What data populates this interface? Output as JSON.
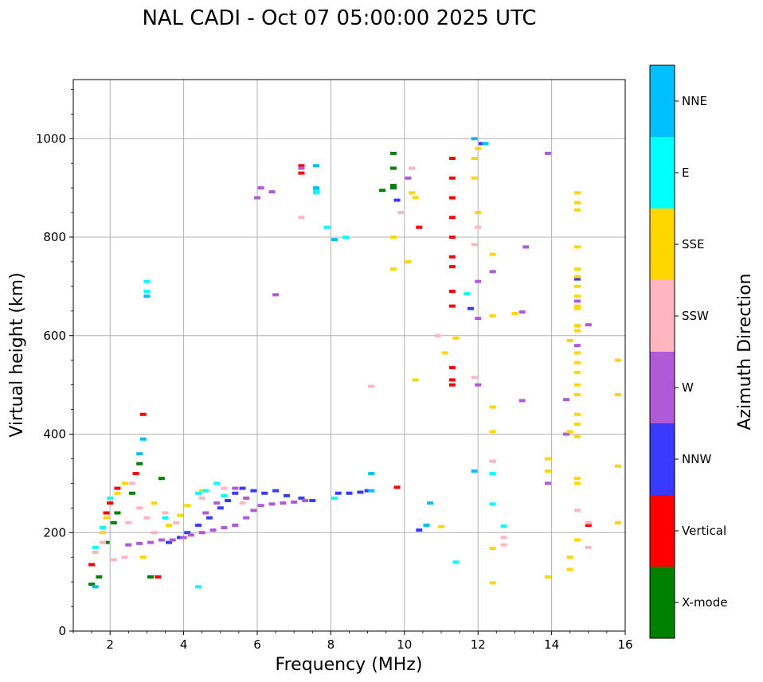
{
  "chart_data": {
    "type": "scatter",
    "title": "NAL CADI - Oct 07 05:00:00 2025 UTC",
    "xlabel": "Frequency (MHz)",
    "ylabel": "Virtual height (km)",
    "xlim": [
      1,
      16
    ],
    "ylim": [
      0,
      1120
    ],
    "xticks": [
      2,
      4,
      6,
      8,
      10,
      12,
      14,
      16
    ],
    "yticks": [
      0,
      200,
      400,
      600,
      800,
      1000
    ],
    "grid": true,
    "colorbar": {
      "label": "Azimuth Direction",
      "position": "right",
      "categories": [
        "X-mode",
        "Vertical",
        "NNW",
        "W",
        "SSW",
        "SSE",
        "E",
        "NNE"
      ],
      "colors": [
        "#008000",
        "#ff0000",
        "#3a3aff",
        "#b05ad8",
        "#ffb6c1",
        "#ffd700",
        "#00ffff",
        "#00bfff"
      ]
    },
    "series": [
      {
        "name": "X-mode",
        "points": [
          [
            1.5,
            95
          ],
          [
            1.7,
            110
          ],
          [
            1.9,
            180
          ],
          [
            2.1,
            220
          ],
          [
            2.2,
            240
          ],
          [
            2.6,
            280
          ],
          [
            2.8,
            340
          ],
          [
            3.1,
            110
          ],
          [
            3.4,
            310
          ],
          [
            9.4,
            895
          ],
          [
            9.7,
            970
          ],
          [
            9.7,
            940
          ],
          [
            9.7,
            905
          ],
          [
            9.7,
            900
          ]
        ]
      },
      {
        "name": "Vertical",
        "points": [
          [
            1.5,
            135
          ],
          [
            1.9,
            240
          ],
          [
            2.0,
            260
          ],
          [
            2.2,
            290
          ],
          [
            2.7,
            320
          ],
          [
            2.9,
            440
          ],
          [
            3.3,
            110
          ],
          [
            7.2,
            945
          ],
          [
            7.2,
            930
          ],
          [
            9.8,
            292
          ],
          [
            10.4,
            820
          ],
          [
            11.3,
            960
          ],
          [
            11.3,
            920
          ],
          [
            11.3,
            880
          ],
          [
            11.3,
            840
          ],
          [
            11.3,
            800
          ],
          [
            11.3,
            760
          ],
          [
            11.3,
            740
          ],
          [
            11.3,
            690
          ],
          [
            11.3,
            660
          ],
          [
            11.3,
            535
          ],
          [
            11.3,
            510
          ],
          [
            11.3,
            500
          ],
          [
            15.0,
            215
          ]
        ]
      },
      {
        "name": "NNW",
        "points": [
          [
            3.6,
            180
          ],
          [
            3.9,
            190
          ],
          [
            4.1,
            200
          ],
          [
            4.4,
            215
          ],
          [
            4.7,
            230
          ],
          [
            5.0,
            250
          ],
          [
            5.2,
            265
          ],
          [
            5.4,
            280
          ],
          [
            5.6,
            290
          ],
          [
            5.9,
            285
          ],
          [
            6.2,
            280
          ],
          [
            6.5,
            285
          ],
          [
            6.8,
            275
          ],
          [
            7.2,
            270
          ],
          [
            7.5,
            265
          ],
          [
            8.2,
            280
          ],
          [
            8.5,
            280
          ],
          [
            8.8,
            282
          ],
          [
            9.0,
            285
          ],
          [
            9.8,
            875
          ],
          [
            10.4,
            205
          ],
          [
            10.6,
            215
          ],
          [
            11.8,
            655
          ],
          [
            12.1,
            990
          ],
          [
            14.7,
            715
          ],
          [
            14.7,
            620
          ]
        ]
      },
      {
        "name": "W",
        "points": [
          [
            2.5,
            175
          ],
          [
            2.8,
            178
          ],
          [
            3.1,
            180
          ],
          [
            3.4,
            185
          ],
          [
            3.7,
            185
          ],
          [
            4.0,
            190
          ],
          [
            4.2,
            195
          ],
          [
            4.5,
            200
          ],
          [
            4.8,
            205
          ],
          [
            5.1,
            210
          ],
          [
            5.4,
            215
          ],
          [
            5.7,
            230
          ],
          [
            5.9,
            245
          ],
          [
            6.1,
            255
          ],
          [
            6.4,
            258
          ],
          [
            6.7,
            260
          ],
          [
            7.0,
            262
          ],
          [
            7.3,
            265
          ],
          [
            4.6,
            240
          ],
          [
            4.9,
            260
          ],
          [
            5.1,
            275
          ],
          [
            5.4,
            290
          ],
          [
            5.7,
            270
          ],
          [
            6.0,
            880
          ],
          [
            6.1,
            900
          ],
          [
            6.4,
            892
          ],
          [
            6.5,
            683
          ],
          [
            7.2,
            940
          ],
          [
            10.1,
            920
          ],
          [
            12.0,
            500
          ],
          [
            12.0,
            635
          ],
          [
            12.0,
            710
          ],
          [
            12.4,
            730
          ],
          [
            12.4,
            345
          ],
          [
            13.2,
            648
          ],
          [
            13.2,
            468
          ],
          [
            13.3,
            780
          ],
          [
            14.4,
            470
          ],
          [
            14.4,
            400
          ],
          [
            14.7,
            670
          ],
          [
            14.7,
            580
          ],
          [
            15.0,
            622
          ],
          [
            13.9,
            970
          ],
          [
            13.9,
            300
          ]
        ]
      },
      {
        "name": "SSW",
        "points": [
          [
            1.6,
            160
          ],
          [
            1.8,
            180
          ],
          [
            2.1,
            145
          ],
          [
            2.4,
            150
          ],
          [
            2.5,
            220
          ],
          [
            2.6,
            300
          ],
          [
            2.8,
            250
          ],
          [
            3.0,
            230
          ],
          [
            3.2,
            200
          ],
          [
            3.5,
            240
          ],
          [
            3.8,
            220
          ],
          [
            4.5,
            270
          ],
          [
            5.1,
            290
          ],
          [
            5.6,
            260
          ],
          [
            7.2,
            840
          ],
          [
            9.1,
            497
          ],
          [
            9.9,
            850
          ],
          [
            10.2,
            940
          ],
          [
            10.9,
            600
          ],
          [
            11.9,
            515
          ],
          [
            11.9,
            785
          ],
          [
            12.0,
            820
          ],
          [
            12.4,
            345
          ],
          [
            12.7,
            190
          ],
          [
            12.7,
            175
          ],
          [
            14.7,
            245
          ],
          [
            15.0,
            170
          ],
          [
            15.0,
            220
          ]
        ]
      },
      {
        "name": "SSE",
        "points": [
          [
            1.8,
            200
          ],
          [
            1.9,
            230
          ],
          [
            2.2,
            280
          ],
          [
            2.4,
            300
          ],
          [
            2.9,
            150
          ],
          [
            3.2,
            260
          ],
          [
            3.6,
            215
          ],
          [
            3.9,
            235
          ],
          [
            4.1,
            255
          ],
          [
            4.5,
            285
          ],
          [
            9.7,
            735
          ],
          [
            9.7,
            800
          ],
          [
            10.1,
            750
          ],
          [
            10.2,
            890
          ],
          [
            10.3,
            880
          ],
          [
            10.3,
            510
          ],
          [
            11.1,
            565
          ],
          [
            11.4,
            595
          ],
          [
            11.0,
            212
          ],
          [
            11.9,
            1000
          ],
          [
            11.9,
            960
          ],
          [
            11.9,
            920
          ],
          [
            12.0,
            850
          ],
          [
            12.0,
            980
          ],
          [
            12.4,
            765
          ],
          [
            12.4,
            640
          ],
          [
            12.4,
            455
          ],
          [
            12.4,
            405
          ],
          [
            12.4,
            168
          ],
          [
            12.4,
            98
          ],
          [
            13.0,
            645
          ],
          [
            14.5,
            590
          ],
          [
            14.5,
            405
          ],
          [
            14.5,
            150
          ],
          [
            14.5,
            125
          ],
          [
            13.9,
            350
          ],
          [
            13.9,
            325
          ],
          [
            13.9,
            110
          ],
          [
            14.7,
            890
          ],
          [
            14.7,
            870
          ],
          [
            14.7,
            855
          ],
          [
            14.7,
            780
          ],
          [
            14.7,
            735
          ],
          [
            14.7,
            720
          ],
          [
            14.7,
            700
          ],
          [
            14.7,
            680
          ],
          [
            14.7,
            660
          ],
          [
            14.7,
            655
          ],
          [
            14.7,
            620
          ],
          [
            14.7,
            610
          ],
          [
            14.7,
            565
          ],
          [
            14.7,
            545
          ],
          [
            14.7,
            525
          ],
          [
            14.7,
            500
          ],
          [
            14.7,
            480
          ],
          [
            14.7,
            440
          ],
          [
            14.7,
            420
          ],
          [
            14.7,
            395
          ],
          [
            14.7,
            310
          ],
          [
            14.7,
            300
          ],
          [
            14.7,
            185
          ],
          [
            15.8,
            550
          ],
          [
            15.8,
            480
          ],
          [
            15.8,
            335
          ],
          [
            15.8,
            220
          ]
        ]
      },
      {
        "name": "E",
        "points": [
          [
            1.6,
            170
          ],
          [
            1.8,
            210
          ],
          [
            2.0,
            270
          ],
          [
            3.0,
            710
          ],
          [
            3.0,
            690
          ],
          [
            3.5,
            230
          ],
          [
            4.4,
            280
          ],
          [
            4.4,
            90
          ],
          [
            4.6,
            285
          ],
          [
            4.9,
            300
          ],
          [
            5.1,
            275
          ],
          [
            7.6,
            895
          ],
          [
            7.6,
            890
          ],
          [
            7.9,
            820
          ],
          [
            8.4,
            800
          ],
          [
            8.1,
            270
          ],
          [
            11.4,
            140
          ],
          [
            11.7,
            685
          ],
          [
            12.4,
            320
          ],
          [
            12.4,
            258
          ],
          [
            12.7,
            213
          ]
        ]
      },
      {
        "name": "NNE",
        "points": [
          [
            1.6,
            90
          ],
          [
            2.8,
            360
          ],
          [
            2.9,
            390
          ],
          [
            3.0,
            680
          ],
          [
            7.6,
            945
          ],
          [
            7.6,
            900
          ],
          [
            8.1,
            795
          ],
          [
            9.1,
            320
          ],
          [
            9.1,
            285
          ],
          [
            10.6,
            215
          ],
          [
            10.7,
            260
          ],
          [
            11.9,
            325
          ],
          [
            11.9,
            1000
          ],
          [
            12.2,
            990
          ]
        ]
      }
    ]
  }
}
